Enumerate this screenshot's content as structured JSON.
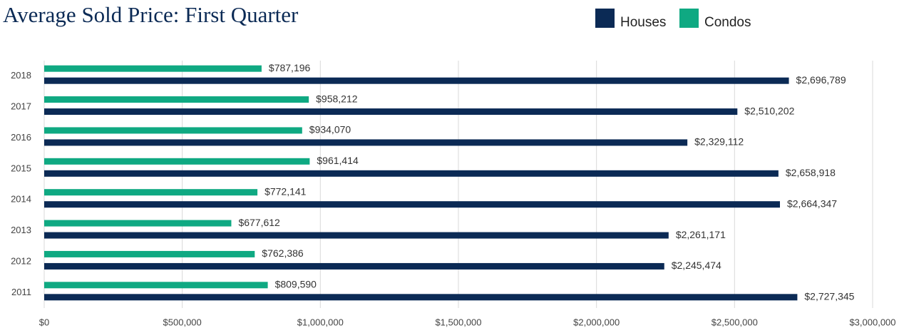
{
  "chart_data": {
    "type": "barh",
    "title": "Average Sold Price: First Quarter",
    "categories": [
      "2018",
      "2017",
      "2016",
      "2015",
      "2014",
      "2013",
      "2012",
      "2011"
    ],
    "series": [
      {
        "name": "Condos",
        "color": "#0fa982",
        "values": [
          787196,
          958212,
          934070,
          961414,
          772141,
          677612,
          762386,
          809590
        ],
        "value_labels": [
          "$787,196",
          "$958,212",
          "$934,070",
          "$961,414",
          "$772,141",
          "$677,612",
          "$762,386",
          "$809,590"
        ]
      },
      {
        "name": "Houses",
        "color": "#0b2a55",
        "values": [
          2696789,
          2510202,
          2329112,
          2658918,
          2664347,
          2261171,
          2245474,
          2727345
        ],
        "value_labels": [
          "$2,696,789",
          "$2,510,202",
          "$2,329,112",
          "$2,658,918",
          "$2,664,347",
          "$2,261,171",
          "$2,245,474",
          "$2,727,345"
        ]
      }
    ],
    "legend_order": [
      "Houses",
      "Condos"
    ],
    "xlim": [
      0,
      3000000
    ],
    "xticks": [
      {
        "value": 0,
        "label": "$0"
      },
      {
        "value": 500000,
        "label": "$500,000"
      },
      {
        "value": 1000000,
        "label": "$1,000,000"
      },
      {
        "value": 1500000,
        "label": "$1,500,000"
      },
      {
        "value": 2000000,
        "label": "$2,000,000"
      },
      {
        "value": 2500000,
        "label": "$2,500,000"
      },
      {
        "value": 3000000,
        "label": "$3,000,000"
      }
    ],
    "grid": true
  }
}
